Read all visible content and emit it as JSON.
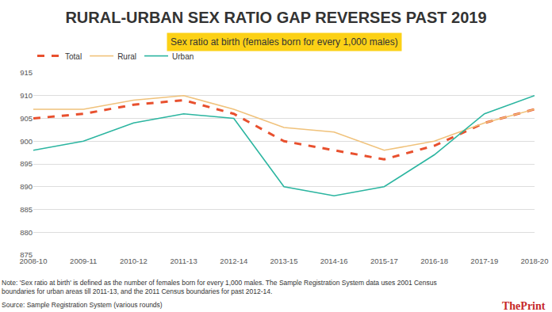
{
  "chart_data": {
    "type": "line",
    "title": "RURAL-URBAN SEX RATIO GAP REVERSES PAST 2019",
    "subtitle": "Sex ratio at birth (females born for every 1,000 males)",
    "categories": [
      "2008-10",
      "2009-11",
      "2010-12",
      "2011-13",
      "2012-14",
      "2013-15",
      "2014-16",
      "2015-17",
      "2016-18",
      "2017-19",
      "2018-20"
    ],
    "series": [
      {
        "name": "Total",
        "color": "#e8502e",
        "line_style": "dash",
        "values": [
          905,
          906,
          908,
          909,
          906,
          900,
          898,
          896,
          899,
          904,
          907
        ]
      },
      {
        "name": "Rural",
        "color": "#f0c27b",
        "line_style": "solid",
        "values": [
          907,
          907,
          909,
          910,
          907,
          903,
          902,
          898,
          900,
          904,
          907
        ]
      },
      {
        "name": "Urban",
        "color": "#2bb5a0",
        "line_style": "solid",
        "values": [
          898,
          900,
          904,
          906,
          905,
          890,
          888,
          890,
          897,
          906,
          910
        ]
      }
    ],
    "ylim": [
      875,
      915
    ],
    "yticks": [
      875,
      880,
      885,
      890,
      895,
      900,
      905,
      910,
      915
    ],
    "grid": true,
    "legend": "top left",
    "notes": [
      "Note: 'Sex ratio at birth' is defined as the number of females born for every 1,000 males. The Sample Registration System data uses 2001 Census boundaries for urban areas till 2011-13, and the 2011 Census boundaries for past 2012-14.",
      "Source: Sample Registration System (various rounds)"
    ],
    "logo": "ThePrint"
  }
}
